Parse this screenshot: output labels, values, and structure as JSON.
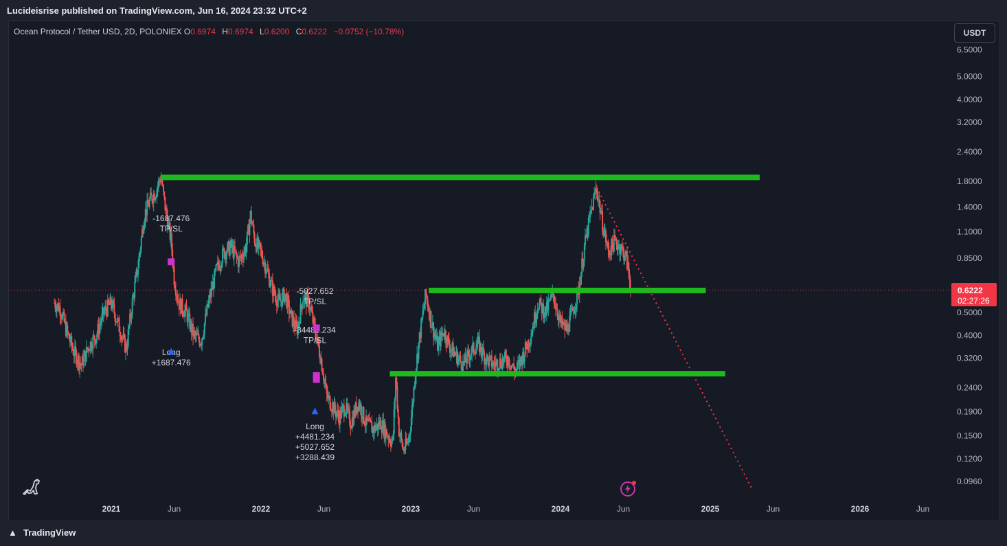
{
  "header": {
    "publisher": "Lucideisrise published on TradingView.com, Jun 16, 2024 23:32 UTC+2"
  },
  "legend": {
    "symbol": "Ocean Protocol / Tether USD, 2D, POLONIEX",
    "o_label": "O",
    "o_value": "0.6974",
    "h_label": "H",
    "h_value": "0.6974",
    "l_label": "L",
    "l_value": "0.6200",
    "c_label": "C",
    "c_value": "0.6222",
    "change": "−0.0752 (−10.78%)"
  },
  "currency_button": "USDT",
  "last_price": {
    "price": "0.6222",
    "countdown": "02:27:26"
  },
  "footer": {
    "brand": "TradingView"
  },
  "colors": {
    "up": "#26a69a",
    "down": "#ef5350",
    "level": "#1db91d",
    "trendline": "#f23645",
    "annotation_marker": "#cc33cc",
    "long_arrow": "#2962ff"
  },
  "chart_data": {
    "type": "line",
    "scale": "log",
    "y_ticks": [
      "6.5000",
      "5.0000",
      "4.0000",
      "3.2000",
      "2.4000",
      "1.8000",
      "1.4000",
      "1.1000",
      "0.8500",
      "0.5000",
      "0.4000",
      "0.3200",
      "0.2400",
      "0.1900",
      "0.1500",
      "0.1200",
      "0.0960"
    ],
    "y_tick_values": [
      6.5,
      5.0,
      4.0,
      3.2,
      2.4,
      1.8,
      1.4,
      1.1,
      0.85,
      0.5,
      0.4,
      0.32,
      0.24,
      0.19,
      0.15,
      0.12,
      0.096
    ],
    "x_ticks": [
      {
        "label": "2021",
        "major": true,
        "t": 2021.0
      },
      {
        "label": "Jun",
        "major": false,
        "t": 2021.42
      },
      {
        "label": "2022",
        "major": true,
        "t": 2022.0
      },
      {
        "label": "Jun",
        "major": false,
        "t": 2022.42
      },
      {
        "label": "2023",
        "major": true,
        "t": 2023.0
      },
      {
        "label": "Jun",
        "major": false,
        "t": 2023.42
      },
      {
        "label": "2024",
        "major": true,
        "t": 2024.0
      },
      {
        "label": "Jun",
        "major": false,
        "t": 2024.42
      },
      {
        "label": "2025",
        "major": true,
        "t": 2025.0
      },
      {
        "label": "Jun",
        "major": false,
        "t": 2025.42
      },
      {
        "label": "2026",
        "major": true,
        "t": 2026.0
      },
      {
        "label": "Jun",
        "major": false,
        "t": 2026.42
      }
    ],
    "price_path": [
      [
        2020.62,
        0.55
      ],
      [
        2020.66,
        0.52
      ],
      [
        2020.7,
        0.42
      ],
      [
        2020.75,
        0.34
      ],
      [
        2020.8,
        0.3
      ],
      [
        2020.85,
        0.36
      ],
      [
        2020.9,
        0.4
      ],
      [
        2020.95,
        0.5
      ],
      [
        2021.0,
        0.55
      ],
      [
        2021.03,
        0.48
      ],
      [
        2021.06,
        0.42
      ],
      [
        2021.1,
        0.35
      ],
      [
        2021.14,
        0.55
      ],
      [
        2021.18,
        0.8
      ],
      [
        2021.22,
        1.3
      ],
      [
        2021.26,
        1.5
      ],
      [
        2021.3,
        1.65
      ],
      [
        2021.33,
        1.9
      ],
      [
        2021.36,
        1.4
      ],
      [
        2021.4,
        1.0
      ],
      [
        2021.42,
        0.7
      ],
      [
        2021.45,
        0.55
      ],
      [
        2021.5,
        0.5
      ],
      [
        2021.55,
        0.4
      ],
      [
        2021.6,
        0.38
      ],
      [
        2021.65,
        0.55
      ],
      [
        2021.7,
        0.75
      ],
      [
        2021.75,
        0.9
      ],
      [
        2021.8,
        0.95
      ],
      [
        2021.85,
        0.82
      ],
      [
        2021.9,
        0.95
      ],
      [
        2021.93,
        1.3
      ],
      [
        2021.96,
        1.0
      ],
      [
        2022.0,
        0.9
      ],
      [
        2022.04,
        0.75
      ],
      [
        2022.08,
        0.62
      ],
      [
        2022.12,
        0.55
      ],
      [
        2022.16,
        0.6
      ],
      [
        2022.2,
        0.48
      ],
      [
        2022.24,
        0.42
      ],
      [
        2022.28,
        0.58
      ],
      [
        2022.32,
        0.55
      ],
      [
        2022.36,
        0.42
      ],
      [
        2022.4,
        0.32
      ],
      [
        2022.44,
        0.22
      ],
      [
        2022.48,
        0.2
      ],
      [
        2022.52,
        0.18
      ],
      [
        2022.56,
        0.2
      ],
      [
        2022.6,
        0.17
      ],
      [
        2022.65,
        0.21
      ],
      [
        2022.7,
        0.17
      ],
      [
        2022.75,
        0.16
      ],
      [
        2022.8,
        0.17
      ],
      [
        2022.85,
        0.15
      ],
      [
        2022.88,
        0.14
      ],
      [
        2022.9,
        0.27
      ],
      [
        2022.92,
        0.16
      ],
      [
        2022.95,
        0.13
      ],
      [
        2022.98,
        0.14
      ],
      [
        2023.0,
        0.17
      ],
      [
        2023.03,
        0.28
      ],
      [
        2023.06,
        0.4
      ],
      [
        2023.1,
        0.6
      ],
      [
        2023.14,
        0.45
      ],
      [
        2023.18,
        0.36
      ],
      [
        2023.22,
        0.42
      ],
      [
        2023.26,
        0.36
      ],
      [
        2023.3,
        0.33
      ],
      [
        2023.35,
        0.3
      ],
      [
        2023.4,
        0.34
      ],
      [
        2023.45,
        0.37
      ],
      [
        2023.5,
        0.32
      ],
      [
        2023.55,
        0.3
      ],
      [
        2023.6,
        0.31
      ],
      [
        2023.65,
        0.32
      ],
      [
        2023.7,
        0.28
      ],
      [
        2023.75,
        0.33
      ],
      [
        2023.8,
        0.4
      ],
      [
        2023.85,
        0.55
      ],
      [
        2023.9,
        0.5
      ],
      [
        2023.95,
        0.6
      ],
      [
        2024.0,
        0.45
      ],
      [
        2024.04,
        0.42
      ],
      [
        2024.08,
        0.5
      ],
      [
        2024.12,
        0.62
      ],
      [
        2024.16,
        0.95
      ],
      [
        2024.2,
        1.3
      ],
      [
        2024.24,
        1.7
      ],
      [
        2024.28,
        1.2
      ],
      [
        2024.32,
        0.9
      ],
      [
        2024.36,
        1.0
      ],
      [
        2024.4,
        0.95
      ],
      [
        2024.44,
        0.85
      ],
      [
        2024.46,
        0.7
      ],
      [
        2024.47,
        0.6222
      ]
    ],
    "levels": [
      {
        "price": 1.87,
        "t_start": 2021.33,
        "t_end": 2025.33
      },
      {
        "price": 0.62,
        "t_start": 2023.12,
        "t_end": 2024.97
      },
      {
        "price": 0.275,
        "t_start": 2022.86,
        "t_end": 2025.1
      }
    ],
    "trendline": {
      "t_start": 2024.24,
      "p_start": 1.7,
      "t_end": 2025.28,
      "p_end": 0.089
    },
    "current_price_line": 0.6222,
    "trade_annotations": [
      {
        "texts": [
          "-1687.476",
          "TP/SL"
        ],
        "t": 2021.4,
        "p": 1.22
      },
      {
        "texts": [
          "Long",
          "+1687.476"
        ],
        "t": 2021.4,
        "p": 0.33
      },
      {
        "texts": [
          "-5027.652",
          "TP/SL"
        ],
        "t": 2022.36,
        "p": 0.6
      },
      {
        "texts": [
          "-34481.234",
          "TP/SL"
        ],
        "t": 2022.36,
        "p": 0.41
      },
      {
        "texts": [
          "Long",
          "+4481.234",
          "+5027.652",
          "+3288.439"
        ],
        "t": 2022.36,
        "p": 0.16
      }
    ]
  }
}
